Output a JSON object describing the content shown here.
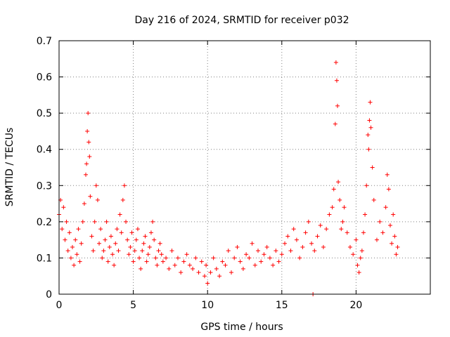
{
  "chart_data": {
    "type": "scatter",
    "title": "Day 216 of 2024, SRMTID for receiver p032",
    "xlabel": "GPS time / hours",
    "ylabel": "SRMTID / TECUs",
    "xlim": [
      0,
      25
    ],
    "ylim": [
      0,
      0.7
    ],
    "xticks": [
      0,
      5,
      10,
      15,
      20
    ],
    "yticks": [
      0,
      0.1,
      0.2,
      0.3,
      0.4,
      0.5,
      0.6,
      0.7
    ],
    "xtick_labels": [
      "0",
      "5",
      "10",
      "15",
      "20"
    ],
    "ytick_labels": [
      "0",
      "0.1",
      "0.2",
      "0.3",
      "0.4",
      "0.5",
      "0.6",
      "0.7"
    ],
    "grid": true,
    "marker": "+",
    "color": "#ff0000",
    "series": [
      {
        "name": "p032",
        "x": [
          0.0,
          0.1,
          0.2,
          0.3,
          0.4,
          0.5,
          0.6,
          0.7,
          0.8,
          0.9,
          1.0,
          1.1,
          1.2,
          1.3,
          1.4,
          1.5,
          1.6,
          1.7,
          1.8,
          1.85,
          1.9,
          1.95,
          2.0,
          2.05,
          2.1,
          2.2,
          2.3,
          2.4,
          2.5,
          2.6,
          2.7,
          2.8,
          2.9,
          3.0,
          3.1,
          3.2,
          3.3,
          3.4,
          3.5,
          3.6,
          3.7,
          3.8,
          3.9,
          4.0,
          4.1,
          4.2,
          4.3,
          4.4,
          4.5,
          4.6,
          4.7,
          4.8,
          4.9,
          5.0,
          5.1,
          5.2,
          5.3,
          5.4,
          5.5,
          5.6,
          5.7,
          5.8,
          5.9,
          6.0,
          6.1,
          6.2,
          6.3,
          6.4,
          6.5,
          6.6,
          6.7,
          6.8,
          6.9,
          7.0,
          7.2,
          7.4,
          7.6,
          7.8,
          8.0,
          8.2,
          8.4,
          8.6,
          8.8,
          9.0,
          9.2,
          9.4,
          9.6,
          9.8,
          9.9,
          10.0,
          10.2,
          10.4,
          10.6,
          10.8,
          11.0,
          11.2,
          11.4,
          11.6,
          11.8,
          12.0,
          12.2,
          12.4,
          12.6,
          12.8,
          13.0,
          13.2,
          13.4,
          13.6,
          13.8,
          14.0,
          14.2,
          14.4,
          14.6,
          14.8,
          15.0,
          15.2,
          15.4,
          15.6,
          15.8,
          16.0,
          16.2,
          16.4,
          16.6,
          16.8,
          17.0,
          17.1,
          17.2,
          17.4,
          17.6,
          17.8,
          18.0,
          18.2,
          18.4,
          18.5,
          18.6,
          18.65,
          18.7,
          18.75,
          18.8,
          18.9,
          19.0,
          19.1,
          19.2,
          19.4,
          19.6,
          19.8,
          20.0,
          20.1,
          20.2,
          20.3,
          20.4,
          20.5,
          20.6,
          20.7,
          20.8,
          20.85,
          20.9,
          20.95,
          21.0,
          21.1,
          21.2,
          21.4,
          21.6,
          21.8,
          22.0,
          22.1,
          22.2,
          22.3,
          22.4,
          22.5,
          22.6,
          22.7,
          22.8
        ],
        "y": [
          0.22,
          0.26,
          0.18,
          0.24,
          0.15,
          0.2,
          0.12,
          0.17,
          0.1,
          0.13,
          0.08,
          0.15,
          0.11,
          0.18,
          0.09,
          0.14,
          0.2,
          0.25,
          0.33,
          0.36,
          0.45,
          0.5,
          0.42,
          0.38,
          0.27,
          0.16,
          0.12,
          0.2,
          0.3,
          0.26,
          0.14,
          0.18,
          0.1,
          0.12,
          0.15,
          0.2,
          0.09,
          0.13,
          0.16,
          0.11,
          0.08,
          0.14,
          0.18,
          0.12,
          0.22,
          0.17,
          0.26,
          0.3,
          0.2,
          0.15,
          0.11,
          0.13,
          0.17,
          0.09,
          0.12,
          0.15,
          0.18,
          0.1,
          0.07,
          0.12,
          0.14,
          0.16,
          0.09,
          0.11,
          0.13,
          0.17,
          0.2,
          0.15,
          0.1,
          0.08,
          0.12,
          0.14,
          0.11,
          0.09,
          0.1,
          0.07,
          0.12,
          0.08,
          0.1,
          0.06,
          0.09,
          0.11,
          0.08,
          0.07,
          0.1,
          0.06,
          0.09,
          0.05,
          0.08,
          0.03,
          0.06,
          0.1,
          0.07,
          0.05,
          0.09,
          0.08,
          0.12,
          0.06,
          0.1,
          0.13,
          0.09,
          0.07,
          0.11,
          0.1,
          0.14,
          0.08,
          0.12,
          0.09,
          0.11,
          0.13,
          0.1,
          0.08,
          0.12,
          0.09,
          0.11,
          0.14,
          0.16,
          0.12,
          0.18,
          0.15,
          0.1,
          0.13,
          0.17,
          0.2,
          0.14,
          0.0,
          0.12,
          0.16,
          0.19,
          0.13,
          0.18,
          0.22,
          0.24,
          0.29,
          0.47,
          0.64,
          0.59,
          0.52,
          0.31,
          0.26,
          0.18,
          0.2,
          0.24,
          0.17,
          0.13,
          0.11,
          0.15,
          0.08,
          0.06,
          0.1,
          0.12,
          0.17,
          0.22,
          0.3,
          0.44,
          0.4,
          0.48,
          0.53,
          0.46,
          0.35,
          0.26,
          0.15,
          0.2,
          0.17,
          0.24,
          0.33,
          0.29,
          0.19,
          0.14,
          0.22,
          0.16,
          0.11,
          0.13
        ]
      }
    ]
  }
}
